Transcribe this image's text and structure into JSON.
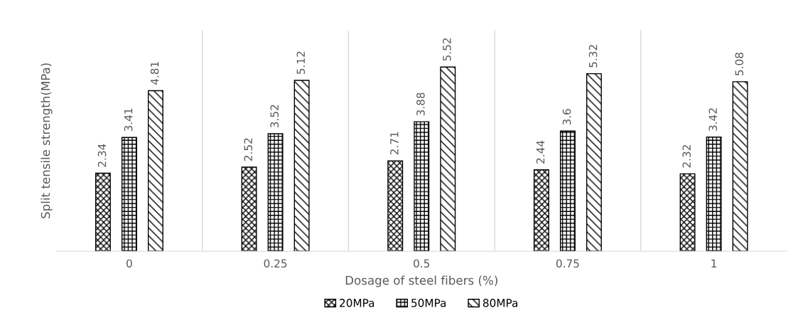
{
  "chart_data": {
    "type": "bar",
    "xlabel": "Dosage of steel fibers (%)",
    "ylabel": "Split tensile strength(MPa)",
    "categories": [
      "0",
      "0.25",
      "0.5",
      "0.75",
      "1"
    ],
    "series": [
      {
        "name": "20MPa",
        "color": "#000000",
        "values": [
          2.34,
          2.52,
          2.71,
          2.44,
          2.32
        ]
      },
      {
        "name": "50MPa",
        "color": "#000000",
        "values": [
          3.41,
          3.52,
          3.88,
          3.6,
          3.42
        ]
      },
      {
        "name": "80MPa",
        "color": "#000000",
        "values": [
          4.81,
          5.12,
          5.52,
          5.32,
          5.08
        ]
      }
    ],
    "data_labels": true,
    "legend": "bottom",
    "grid": "x"
  }
}
